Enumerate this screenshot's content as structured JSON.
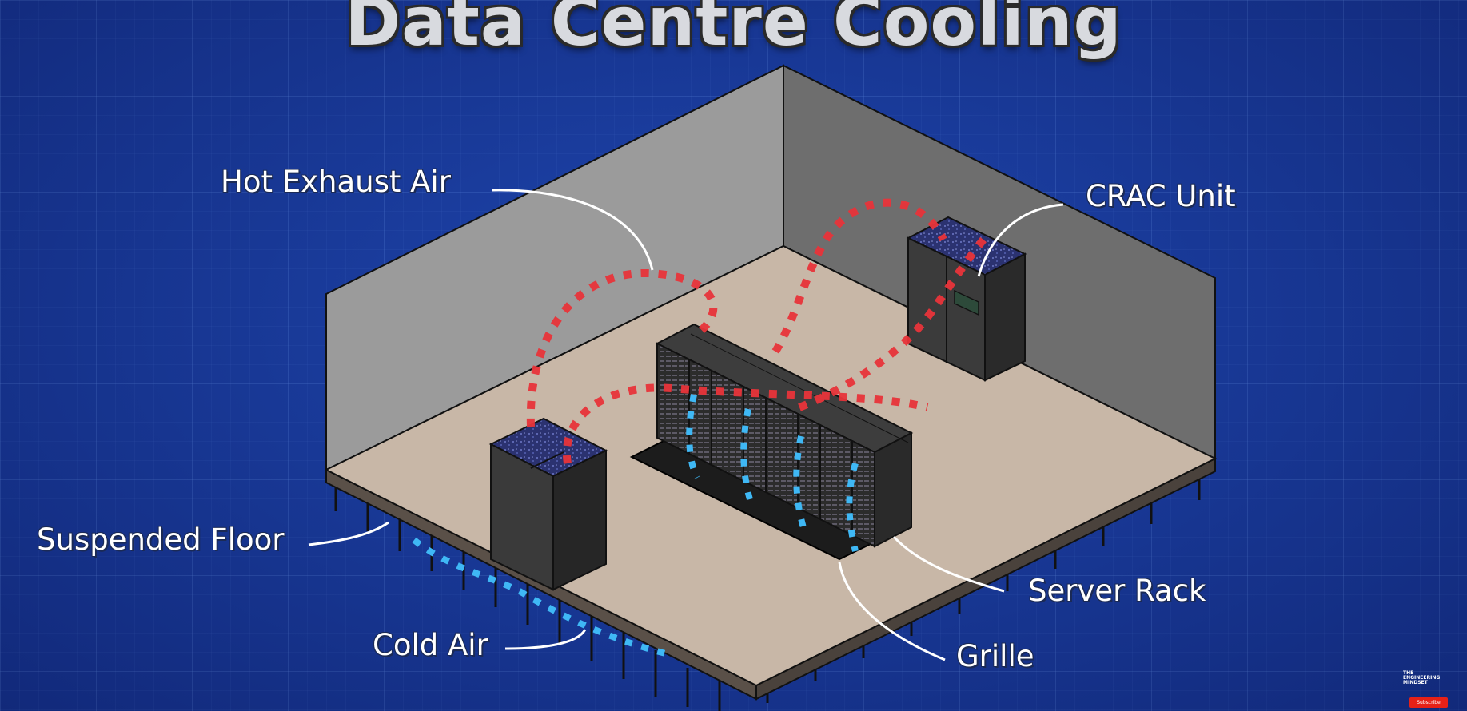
{
  "title": "Data Centre Cooling",
  "labels": {
    "hot_exhaust_air": "Hot Exhaust Air",
    "crac_unit": "CRAC Unit",
    "suspended_floor": "Suspended Floor",
    "server_rack": "Server Rack",
    "cold_air": "Cold Air",
    "grille": "Grille"
  },
  "watermark": {
    "line1": "THE",
    "line2": "ENGINEERING",
    "line3": "MINDSET",
    "subscribe": "Subscribe"
  },
  "colors": {
    "background": "#1b3fa6",
    "wall_left": "#9c9c9c",
    "wall_right": "#6a6a6a",
    "floor": "#c9b8a8",
    "hot_air": "#e8343a",
    "cold_air": "#3fb8f5",
    "cabinet": "#3a3a3a"
  }
}
